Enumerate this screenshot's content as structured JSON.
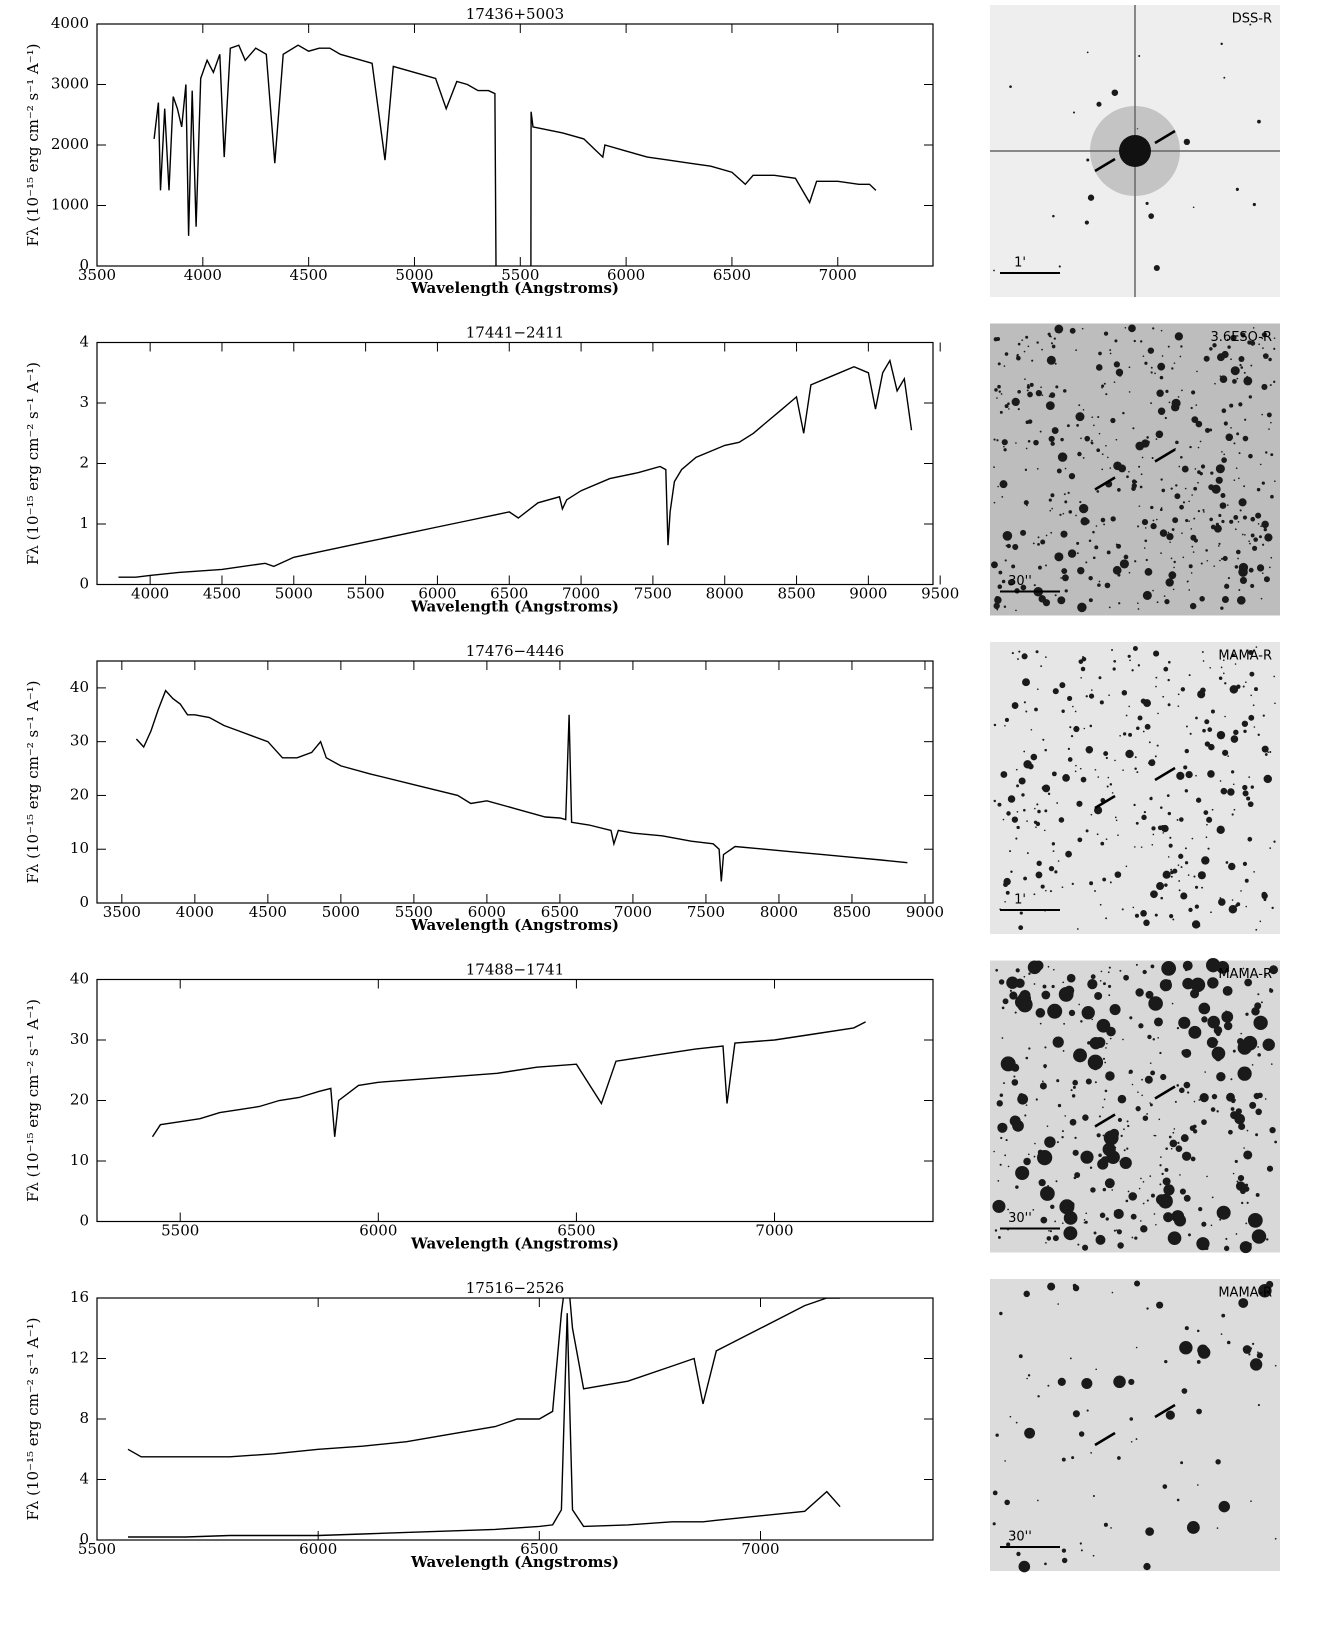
{
  "chart_data": [
    {
      "type": "line",
      "title": "17436+5003",
      "xlabel": "Wavelength (Angstroms)",
      "ylabel": "Fλ (10⁻¹⁵ erg cm⁻² s⁻¹ A⁻¹)",
      "x": [
        3770,
        3790,
        3800,
        3820,
        3840,
        3860,
        3880,
        3900,
        3920,
        3933,
        3950,
        3968,
        3990,
        4020,
        4050,
        4080,
        4101,
        4130,
        4170,
        4200,
        4250,
        4300,
        4340,
        4380,
        4450,
        4500,
        4550,
        4600,
        4650,
        4700,
        4750,
        4800,
        4861,
        4900,
        4950,
        5000,
        5100,
        5150,
        5200,
        5250,
        5300,
        5350,
        5380,
        5385,
        5460,
        5550,
        5551,
        5560,
        5700,
        5800,
        5890,
        5900,
        6000,
        6100,
        6200,
        6300,
        6400,
        6500,
        6563,
        6600,
        6700,
        6800,
        6867,
        6900,
        7000,
        7100,
        7150,
        7180
      ],
      "series": [
        {
          "color": "#000000",
          "values": [
            2100,
            2700,
            1250,
            2600,
            1250,
            2800,
            2600,
            2300,
            3000,
            500,
            2900,
            650,
            3100,
            3400,
            3200,
            3500,
            1800,
            3600,
            3650,
            3400,
            3600,
            3500,
            1700,
            3500,
            3650,
            3550,
            3600,
            3600,
            3500,
            3450,
            3400,
            3350,
            1750,
            3300,
            3250,
            3200,
            3100,
            2600,
            3050,
            3000,
            2900,
            2900,
            2850,
            0,
            null,
            0,
            2550,
            2300,
            2200,
            2100,
            1800,
            2000,
            1900,
            1800,
            1750,
            1700,
            1650,
            1550,
            1350,
            1500,
            1500,
            1450,
            1050,
            1400,
            1400,
            1350,
            1350,
            1250
          ]
        }
      ],
      "xlim": [
        3500,
        7450
      ],
      "ylim": [
        0,
        4000
      ],
      "xticks": [
        3500,
        4000,
        4500,
        5000,
        5500,
        6000,
        6500,
        7000
      ],
      "yticks": [
        0,
        1000,
        2000,
        3000,
        4000
      ],
      "image": {
        "survey": "DSS-R",
        "scale": "1'"
      }
    },
    {
      "type": "line",
      "title": "17441−2411",
      "xlabel": "Wavelength (Angstroms)",
      "ylabel": "Fλ (10⁻¹⁵ erg cm⁻² s⁻¹ A⁻¹)",
      "x": [
        3780,
        3900,
        4000,
        4200,
        4500,
        4800,
        4861,
        5000,
        5200,
        5500,
        5800,
        6000,
        6200,
        6400,
        6500,
        6563,
        6700,
        6850,
        6870,
        6900,
        7000,
        7200,
        7400,
        7550,
        7590,
        7605,
        7620,
        7650,
        7700,
        7800,
        7900,
        8000,
        8100,
        8200,
        8300,
        8400,
        8500,
        8550,
        8600,
        8700,
        8800,
        8900,
        9000,
        9050,
        9100,
        9150,
        9200,
        9250,
        9300
      ],
      "series": [
        {
          "color": "#000000",
          "values": [
            0.12,
            0.12,
            0.15,
            0.2,
            0.25,
            0.35,
            0.3,
            0.45,
            0.55,
            0.7,
            0.85,
            0.95,
            1.05,
            1.15,
            1.2,
            1.1,
            1.35,
            1.45,
            1.25,
            1.4,
            1.55,
            1.75,
            1.85,
            1.95,
            1.9,
            0.65,
            1.2,
            1.7,
            1.9,
            2.1,
            2.2,
            2.3,
            2.35,
            2.5,
            2.7,
            2.9,
            3.1,
            2.5,
            3.3,
            3.4,
            3.5,
            3.6,
            3.5,
            2.9,
            3.5,
            3.7,
            3.2,
            3.4,
            2.55
          ]
        }
      ],
      "xlim": [
        3630,
        9450
      ],
      "ylim": [
        0,
        4
      ],
      "xticks": [
        4000,
        4500,
        5000,
        5500,
        6000,
        6500,
        7000,
        7500,
        8000,
        8500,
        9000,
        9500
      ],
      "yticks": [
        0,
        1,
        2,
        3,
        4
      ],
      "image": {
        "survey": "3.6ESO-R",
        "scale": "30''"
      }
    },
    {
      "type": "line",
      "title": "17476−4446",
      "xlabel": "Wavelength (Angstroms)",
      "ylabel": "Fλ (10⁻¹⁵ erg cm⁻² s⁻¹ A⁻¹)",
      "x": [
        3600,
        3650,
        3700,
        3750,
        3800,
        3850,
        3900,
        3950,
        4000,
        4100,
        4200,
        4300,
        4400,
        4500,
        4600,
        4700,
        4800,
        4861,
        4900,
        5000,
        5200,
        5500,
        5800,
        5890,
        6000,
        6200,
        6400,
        6500,
        6540,
        6563,
        6580,
        6700,
        6850,
        6870,
        6900,
        7000,
        7200,
        7400,
        7550,
        7590,
        7605,
        7620,
        7700,
        7900,
        8100,
        8300,
        8500,
        8700,
        8880
      ],
      "series": [
        {
          "color": "#000000",
          "values": [
            30.5,
            29,
            32,
            36,
            39.5,
            38,
            37,
            35,
            35,
            34.5,
            33,
            32,
            31,
            30,
            27,
            27,
            28,
            30,
            27,
            25.5,
            24,
            22,
            20,
            18.5,
            19,
            17.5,
            16,
            15.8,
            15.5,
            35,
            15,
            14.5,
            13.5,
            11,
            13.5,
            13,
            12.5,
            11.5,
            11,
            10,
            4,
            9,
            10.5,
            10,
            9.5,
            9,
            8.5,
            8,
            7.5
          ]
        }
      ],
      "xlim": [
        3330,
        9055
      ],
      "ylim": [
        0,
        45
      ],
      "xticks": [
        3500,
        4000,
        4500,
        5000,
        5500,
        6000,
        6500,
        7000,
        7500,
        8000,
        8500,
        9000
      ],
      "yticks": [
        0,
        10,
        20,
        30,
        40
      ],
      "image": {
        "survey": "MAMA-R",
        "scale": "1'"
      }
    },
    {
      "type": "line",
      "title": "17488−1741",
      "xlabel": "Wavelength (Angstroms)",
      "ylabel": "Fλ (10⁻¹⁵ erg cm⁻² s⁻¹ A⁻¹)",
      "x": [
        5430,
        5450,
        5500,
        5550,
        5600,
        5650,
        5700,
        5750,
        5800,
        5850,
        5880,
        5890,
        5900,
        5950,
        6000,
        6100,
        6200,
        6300,
        6400,
        6500,
        6563,
        6600,
        6700,
        6800,
        6870,
        6880,
        6900,
        7000,
        7100,
        7200,
        7230
      ],
      "series": [
        {
          "color": "#000000",
          "values": [
            14,
            16,
            16.5,
            17,
            18,
            18.5,
            19,
            20,
            20.5,
            21.5,
            22,
            14,
            20,
            22.5,
            23,
            23.5,
            24,
            24.5,
            25.5,
            26,
            19.5,
            26.5,
            27.5,
            28.5,
            29,
            19.5,
            29.5,
            30,
            31,
            32,
            33
          ]
        }
      ],
      "xlim": [
        5290,
        7400
      ],
      "ylim": [
        0,
        40
      ],
      "xticks": [
        5500,
        6000,
        6500,
        7000
      ],
      "yticks": [
        0,
        10,
        20,
        30,
        40
      ],
      "image": {
        "survey": "MAMA-R",
        "scale": "30''"
      }
    },
    {
      "type": "line",
      "title": "17516−2526",
      "xlabel": "Wavelength (Angstroms)",
      "ylabel": "Fλ (10⁻¹⁵ erg cm⁻² s⁻¹ A⁻¹)",
      "x": [
        5570,
        5600,
        5700,
        5800,
        5900,
        6000,
        6100,
        6200,
        6300,
        6400,
        6450,
        6500,
        6530,
        6550,
        6563,
        6575,
        6600,
        6700,
        6800,
        6850,
        6870,
        6900,
        7000,
        7100,
        7150,
        7180
      ],
      "series": [
        {
          "color": "#000000",
          "values": [
            6,
            5.5,
            5.5,
            5.5,
            5.7,
            6,
            6.2,
            6.5,
            7,
            7.5,
            8,
            8,
            8.5,
            15,
            18,
            14,
            10,
            10.5,
            11.5,
            12,
            9,
            12.5,
            14,
            15.5,
            16,
            16
          ]
        },
        {
          "color": "#000000",
          "values": [
            0.2,
            0.2,
            0.2,
            0.3,
            0.3,
            0.3,
            0.4,
            0.5,
            0.6,
            0.7,
            0.8,
            0.9,
            1.0,
            2,
            15,
            2,
            0.9,
            1.0,
            1.2,
            1.2,
            1.2,
            1.3,
            1.6,
            1.9,
            3.2,
            2.2
          ]
        }
      ],
      "xlim": [
        5500,
        7390
      ],
      "ylim": [
        0,
        16
      ],
      "xticks": [
        5500,
        6000,
        6500,
        7000
      ],
      "yticks": [
        0,
        4,
        8,
        12,
        16
      ],
      "image": {
        "survey": "MAMA-R",
        "scale": "30''"
      }
    }
  ]
}
